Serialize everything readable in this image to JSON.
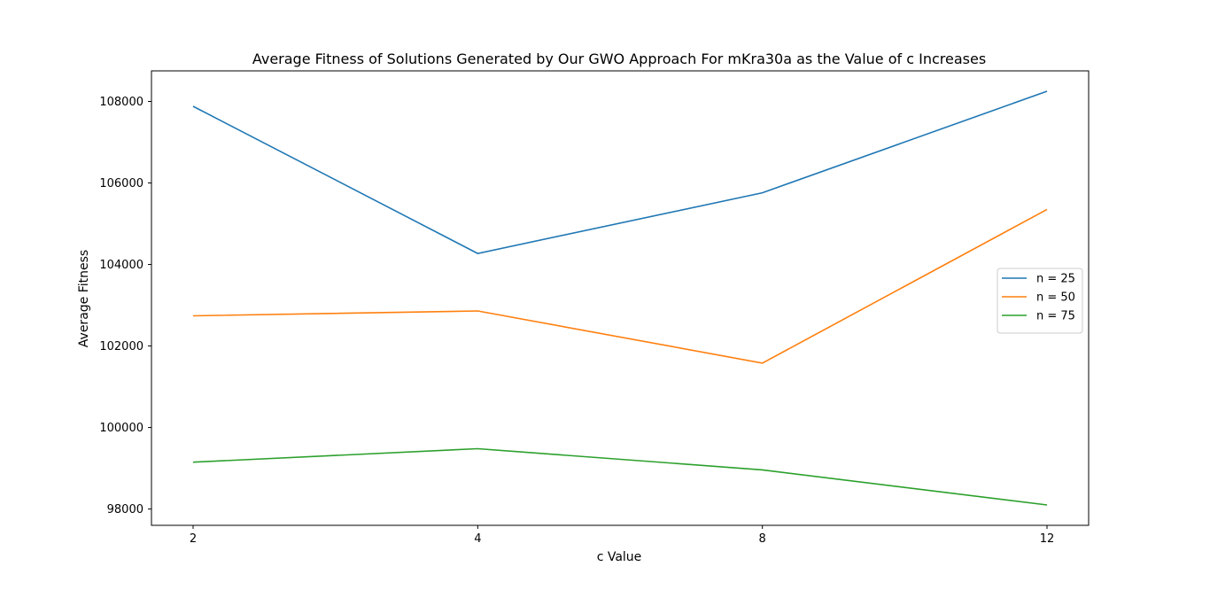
{
  "chart_data": {
    "type": "line",
    "title": "Average Fitness of Solutions Generated by Our GWO Approach For mKra30a as the Value of c Increases",
    "xlabel": "c Value",
    "ylabel": "Average Fitness",
    "x": [
      "2",
      "4",
      "8",
      "12"
    ],
    "yticks": [
      "98000",
      "100000",
      "102000",
      "104000",
      "106000",
      "108000"
    ],
    "ylim": [
      97600,
      108750
    ],
    "grid": false,
    "legend_position": "center-right",
    "series": [
      {
        "name": "n = 25",
        "color": "#1f77b4",
        "values": [
          107880,
          104270,
          105760,
          108250
        ]
      },
      {
        "name": "n = 50",
        "color": "#ff7f0e",
        "values": [
          102740,
          102860,
          101580,
          105350
        ]
      },
      {
        "name": "n = 75",
        "color": "#2ca02c",
        "values": [
          99150,
          99480,
          98960,
          98100
        ]
      }
    ]
  }
}
